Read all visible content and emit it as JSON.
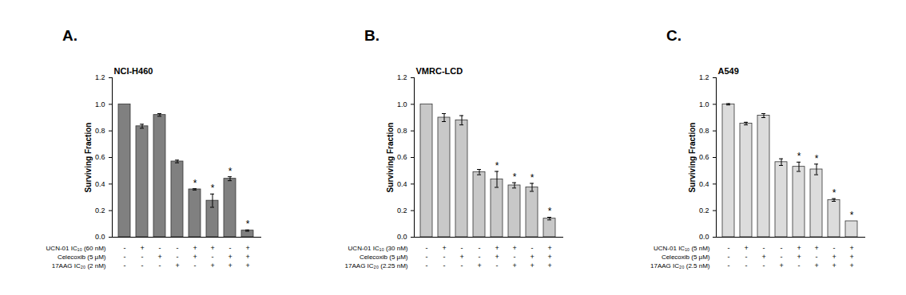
{
  "chart_data": [
    {
      "type": "bar",
      "panel": "A.",
      "title": "NCI-H460",
      "y_label": "Surviving Fraction",
      "categories": [
        null,
        null,
        null,
        null,
        null,
        null,
        null,
        null
      ],
      "values": [
        1.0,
        0.835,
        0.92,
        0.57,
        0.36,
        0.275,
        0.44,
        0.05
      ],
      "errors": [
        0.0,
        0.015,
        0.01,
        0.01,
        0.005,
        0.05,
        0.015,
        0.005
      ],
      "significance": [
        null,
        null,
        null,
        null,
        "*",
        "*",
        "*",
        "*"
      ],
      "treatments": [
        {
          "label": "UCN-01 IC₁₀ (60 nM)",
          "signs": [
            "-",
            "+",
            "-",
            "-",
            "+",
            "+",
            "-",
            "+"
          ]
        },
        {
          "label": "Celecoxib (5 µM)",
          "signs": [
            "-",
            "-",
            "+",
            "-",
            "+",
            "-",
            "+",
            "+"
          ]
        },
        {
          "label": "17AAG IC₂₀ (2 nM)",
          "signs": [
            "-",
            "-",
            "-",
            "+",
            "-",
            "+",
            "+",
            "+"
          ]
        }
      ],
      "color": "#808080",
      "ylim": [
        0,
        1.2
      ],
      "yticks": [
        {
          "value": 0,
          "label": "0.0"
        },
        {
          "value": 0.2,
          "label": "0.2"
        },
        {
          "value": 0.4,
          "label": "0.4"
        },
        {
          "value": 0.6,
          "label": "0.6"
        },
        {
          "value": 0.8,
          "label": "0.8"
        },
        {
          "value": 1.0,
          "label": "1.0"
        },
        {
          "value": 1.2,
          "label": "1.2"
        }
      ],
      "tick_labels": "y"
    },
    {
      "type": "bar",
      "panel": "B.",
      "title": "VMRC-LCD",
      "y_label": "Surviving Fraction",
      "categories": [
        null,
        null,
        null,
        null,
        null,
        null,
        null,
        null
      ],
      "values": [
        1.0,
        0.9,
        0.88,
        0.49,
        0.435,
        0.39,
        0.375,
        0.14
      ],
      "errors": [
        0.0,
        0.03,
        0.035,
        0.02,
        0.06,
        0.02,
        0.03,
        0.01
      ],
      "significance": [
        null,
        null,
        null,
        null,
        "*",
        "*",
        "*",
        "*"
      ],
      "treatments": [
        {
          "label": "UCN-01 IC₁₀ (30 nM)",
          "signs": [
            "-",
            "+",
            "-",
            "-",
            "+",
            "+",
            "-",
            "+"
          ]
        },
        {
          "label": "Celecoxib (5 µM)",
          "signs": [
            "-",
            "-",
            "+",
            "-",
            "+",
            "-",
            "+",
            "+"
          ]
        },
        {
          "label": "17AAG IC₂₀ (2.25 nM)",
          "signs": [
            "-",
            "-",
            "-",
            "+",
            "-",
            "+",
            "+",
            "+"
          ]
        }
      ],
      "color": "#c8c8c8",
      "ylim": [
        0,
        1.2
      ],
      "yticks": [
        {
          "value": 0,
          "label": "0.0"
        },
        {
          "value": 0.2,
          "label": "0.2"
        },
        {
          "value": 0.4,
          "label": "0.4"
        },
        {
          "value": 0.6,
          "label": "0.6"
        },
        {
          "value": 0.8,
          "label": "0.8"
        },
        {
          "value": 1.0,
          "label": "1.0"
        },
        {
          "value": 1.2,
          "label": "1.2"
        }
      ],
      "tick_labels": "y"
    },
    {
      "type": "bar",
      "panel": "C.",
      "title": "A549",
      "y_label": "Surviving Fraction",
      "categories": [
        null,
        null,
        null,
        null,
        null,
        null,
        null,
        null
      ],
      "values": [
        1.0,
        0.855,
        0.915,
        0.565,
        0.53,
        0.51,
        0.28,
        0.12
      ],
      "errors": [
        0.005,
        0.01,
        0.015,
        0.025,
        0.035,
        0.04,
        0.01,
        0.0
      ],
      "significance": [
        null,
        null,
        null,
        null,
        "*",
        "*",
        "*",
        "*"
      ],
      "treatments": [
        {
          "label": "UCN-01 IC₁₀ (5 nM)",
          "signs": [
            "-",
            "+",
            "-",
            "-",
            "+",
            "+",
            "-",
            "+"
          ]
        },
        {
          "label": "Celecoxib (5 µM)",
          "signs": [
            "-",
            "-",
            "+",
            "-",
            "+",
            "-",
            "+",
            "+"
          ]
        },
        {
          "label": "17AAG IC₂₀ (2.5 nM)",
          "signs": [
            "-",
            "-",
            "-",
            "+",
            "-",
            "+",
            "+",
            "+"
          ]
        }
      ],
      "color": "#dcdcdc",
      "ylim": [
        0,
        1.2
      ],
      "yticks": [
        {
          "value": 0,
          "label": "0.0"
        },
        {
          "value": 0.2,
          "label": "0.2"
        },
        {
          "value": 0.4,
          "label": "0.4"
        },
        {
          "value": 0.6,
          "label": "0.6"
        },
        {
          "value": 0.8,
          "label": "0.8"
        },
        {
          "value": 1.0,
          "label": "1.0"
        },
        {
          "value": 1.2,
          "label": "1.2"
        }
      ],
      "tick_labels": "y"
    }
  ]
}
